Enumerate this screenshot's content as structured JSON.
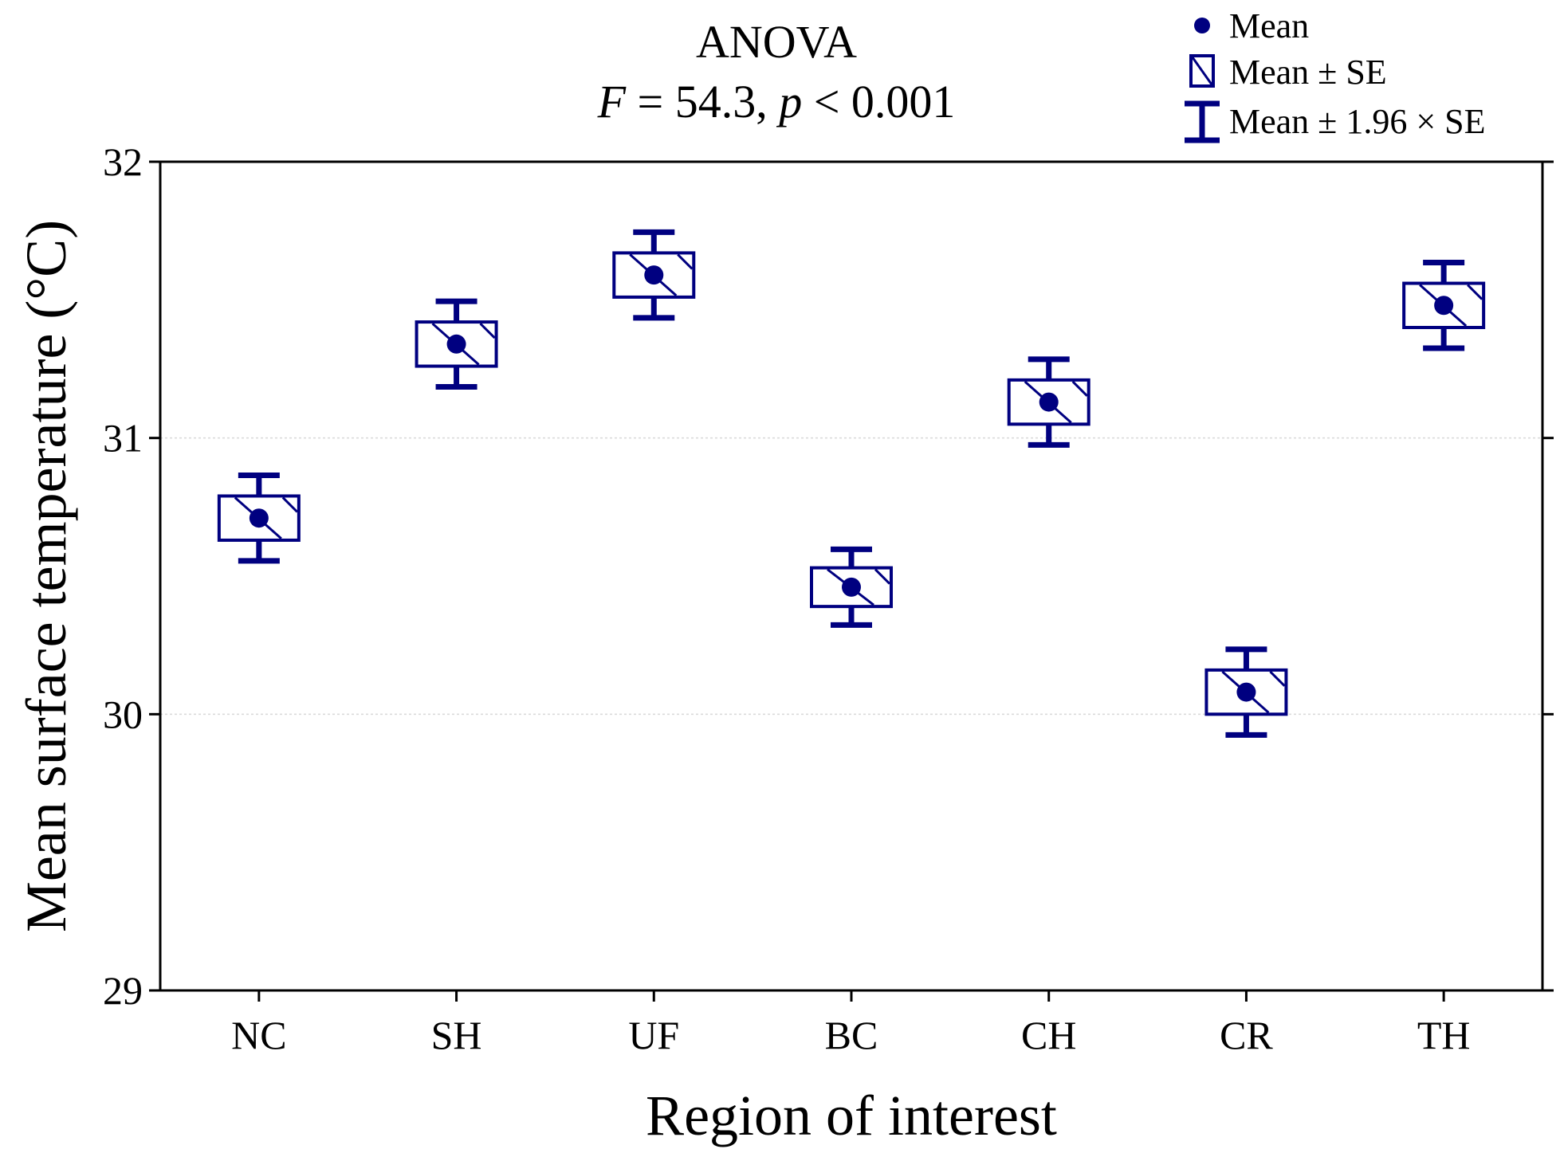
{
  "chart_data": {
    "type": "mean-se-plot",
    "title": "ANOVA",
    "subtitle": {
      "f_symbol": "F",
      "f_value": " = 54.3, ",
      "p_symbol": "p",
      "p_value": " < 0.001"
    },
    "xlabel": "Region of interest",
    "ylabel": "Mean surface temperature (°C)",
    "ylim": [
      29,
      32
    ],
    "yticks": [
      "29",
      "30",
      "31",
      "32"
    ],
    "grid": true,
    "legend_position": "top-right",
    "legend": {
      "mean": "Mean",
      "se": "Mean ± SE",
      "ci": "Mean ± 1.96 × SE"
    },
    "categories": [
      "NC",
      "SH",
      "UF",
      "BC",
      "CH",
      "CR",
      "TH"
    ],
    "means": [
      30.71,
      31.34,
      31.59,
      30.46,
      31.13,
      30.08,
      31.48
    ],
    "se": [
      0.08,
      0.08,
      0.08,
      0.07,
      0.08,
      0.08,
      0.08
    ],
    "ci": [
      0.155,
      0.155,
      0.155,
      0.137,
      0.155,
      0.155,
      0.155
    ]
  },
  "colors": {
    "marker": "#000080",
    "axis": "#000000",
    "grid": "#d9d9d9",
    "background": "#ffffff"
  }
}
